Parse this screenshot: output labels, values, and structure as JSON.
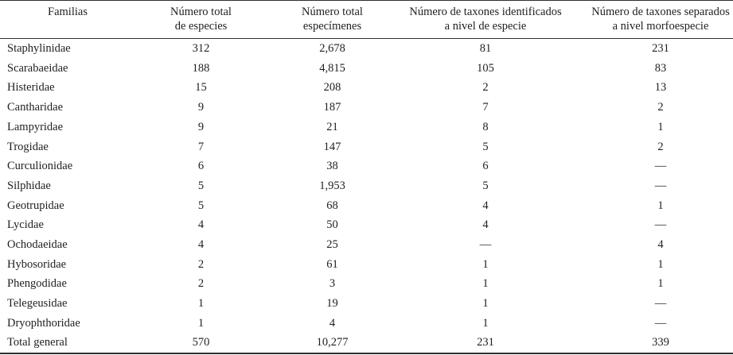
{
  "table": {
    "header": {
      "cells": [
        {
          "lines": [
            "Familias"
          ]
        },
        {
          "lines": [
            "Número total",
            "de especies"
          ]
        },
        {
          "lines": [
            "Número total",
            "especímenes"
          ]
        },
        {
          "lines": [
            "Número de taxones identificados",
            "a nivel de especie"
          ]
        },
        {
          "lines": [
            "Número de taxones separados",
            "a nivel morfoespecie"
          ]
        }
      ]
    },
    "rows": [
      [
        "Staphylinidae",
        "312",
        "2,678",
        "81",
        "231"
      ],
      [
        "Scarabaeidae",
        "188",
        "4,815",
        "105",
        "83"
      ],
      [
        "Histeridae",
        "15",
        "208",
        "2",
        "13"
      ],
      [
        "Cantharidae",
        "9",
        "187",
        "7",
        "2"
      ],
      [
        "Lampyridae",
        "9",
        "21",
        "8",
        "1"
      ],
      [
        "Trogidae",
        "7",
        "147",
        "5",
        "2"
      ],
      [
        "Curculionidae",
        "6",
        "38",
        "6",
        "—"
      ],
      [
        "Silphidae",
        "5",
        "1,953",
        "5",
        "—"
      ],
      [
        "Geotrupidae",
        "5",
        "68",
        "4",
        "1"
      ],
      [
        "Lycidae",
        "4",
        "50",
        "4",
        "—"
      ],
      [
        "Ochodaeidae",
        "4",
        "25",
        "—",
        "4"
      ],
      [
        "Hybosoridae",
        "2",
        "61",
        "1",
        "1"
      ],
      [
        "Phengodidae",
        "2",
        "3",
        "1",
        "1"
      ],
      [
        "Telegeusidae",
        "1",
        "19",
        "1",
        "—"
      ],
      [
        "Dryophthoridae",
        "1",
        "4",
        "1",
        "—"
      ],
      [
        "Total general",
        "570",
        "10,277",
        "231",
        "339"
      ]
    ],
    "missing_value_symbol": "—",
    "colors": {
      "text": "#1f1f1f",
      "rule": "#2e2e2e",
      "background": "#ffffff"
    }
  }
}
